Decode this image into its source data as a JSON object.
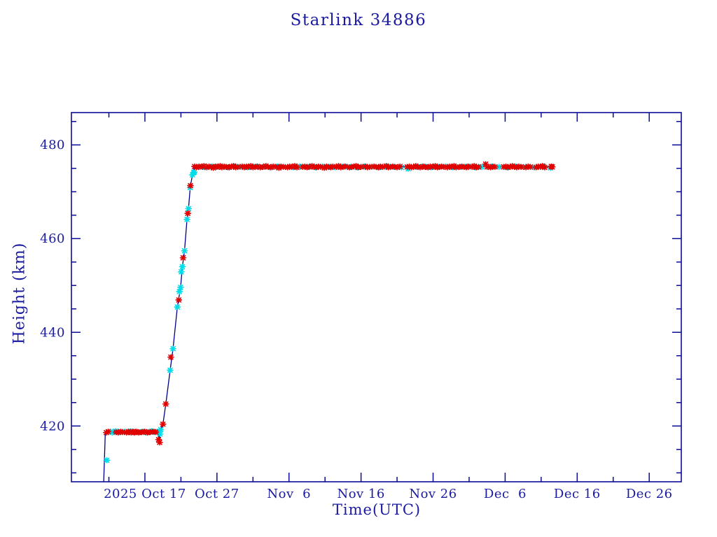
{
  "chart_data": {
    "type": "line",
    "title": "Starlink 34886",
    "xlabel": "Time(UTC)",
    "ylabel": "Height (km)",
    "x_axis_epoch_label": "days relative to 2025 Oct 17",
    "xlim": [
      -10.2,
      74.45
    ],
    "ylim": [
      408.1,
      486.9
    ],
    "grid": false,
    "frame": "closed box, ticks inward on all four sides",
    "legend": "none",
    "x_ticks_major": [
      {
        "day": 0,
        "label": "2025 Oct 17"
      },
      {
        "day": 10,
        "label": "Oct 27"
      },
      {
        "day": 20,
        "label": "Nov  6"
      },
      {
        "day": 30,
        "label": "Nov 16"
      },
      {
        "day": 40,
        "label": "Nov 26"
      },
      {
        "day": 50,
        "label": "Dec  6"
      },
      {
        "day": 60,
        "label": "Dec 16"
      },
      {
        "day": 70,
        "label": "Dec 26"
      }
    ],
    "x_ticks_minor_days": [
      -5,
      5,
      15,
      25,
      35,
      45,
      55,
      65
    ],
    "y_ticks_major": [
      {
        "km": 420,
        "label": "420"
      },
      {
        "km": 440,
        "label": "440"
      },
      {
        "km": 460,
        "label": "460"
      },
      {
        "km": 480,
        "label": "480"
      }
    ],
    "y_ticks_minor_km": [
      410,
      415,
      425,
      430,
      435,
      445,
      450,
      455,
      465,
      470,
      475,
      485
    ],
    "colors": {
      "text": "#1a1aa0",
      "frame": "#0c0c96",
      "line": "#00008b",
      "red_marker": "#e00000",
      "cyan_marker": "#00dde8"
    },
    "series": [
      {
        "name": "orbit-height-track",
        "type": "line",
        "points": [
          [
            -5.72,
            408.1
          ],
          [
            -5.6,
            413.5
          ],
          [
            -5.5,
            418.7
          ],
          [
            1.8,
            418.7
          ],
          [
            1.9,
            417.2
          ],
          [
            1.95,
            418.6
          ],
          [
            2.05,
            416.5
          ],
          [
            2.15,
            418.8
          ],
          [
            2.3,
            419.6
          ],
          [
            2.5,
            420.4
          ],
          [
            2.9,
            424.7
          ],
          [
            3.5,
            431.9
          ],
          [
            3.9,
            436.5
          ],
          [
            4.5,
            445.4
          ],
          [
            4.95,
            449.6
          ],
          [
            5.2,
            454.0
          ],
          [
            5.5,
            457.4
          ],
          [
            5.85,
            464.1
          ],
          [
            6.05,
            466.4
          ],
          [
            6.3,
            471.1
          ],
          [
            6.6,
            473.6
          ],
          [
            6.8,
            474.9
          ],
          [
            6.9,
            475.4
          ],
          [
            15.0,
            475.35
          ],
          [
            25.0,
            475.3
          ],
          [
            35.0,
            475.4
          ],
          [
            45.0,
            475.3
          ],
          [
            56.6,
            475.35
          ]
        ]
      },
      {
        "name": "red-observations",
        "type": "scatter",
        "marker": "asterisk",
        "points": [
          [
            -5.35,
            418.6
          ],
          [
            -5.1,
            418.8
          ],
          [
            -4.0,
            418.7
          ],
          [
            -3.7,
            418.6
          ],
          [
            -3.35,
            418.8
          ],
          [
            -3.1,
            418.7
          ],
          [
            -2.55,
            418.6
          ],
          [
            -2.3,
            418.8
          ],
          [
            -2.1,
            418.7
          ],
          [
            -1.9,
            418.6
          ],
          [
            -1.7,
            418.8
          ],
          [
            -1.55,
            418.7
          ],
          [
            -1.4,
            418.6
          ],
          [
            -1.25,
            418.8
          ],
          [
            -1.05,
            418.7
          ],
          [
            -0.85,
            418.6
          ],
          [
            -0.45,
            418.7
          ],
          [
            -0.05,
            418.8
          ],
          [
            0.35,
            418.6
          ],
          [
            0.75,
            418.7
          ],
          [
            1.05,
            418.8
          ],
          [
            1.5,
            418.7
          ],
          [
            1.9,
            417.1
          ],
          [
            2.05,
            416.5
          ],
          [
            2.5,
            420.4
          ],
          [
            2.9,
            424.7
          ],
          [
            3.6,
            434.7
          ],
          [
            4.7,
            446.9
          ],
          [
            5.3,
            455.9
          ],
          [
            5.95,
            465.4
          ],
          [
            6.32,
            471.3
          ],
          [
            6.9,
            475.4
          ],
          [
            7.15,
            475.2
          ],
          [
            7.5,
            475.4
          ],
          [
            8.0,
            475.3
          ],
          [
            8.2,
            475.5
          ],
          [
            8.6,
            475.2
          ],
          [
            8.9,
            475.4
          ],
          [
            9.2,
            475.3
          ],
          [
            9.5,
            475.1
          ],
          [
            9.8,
            475.4
          ],
          [
            10.0,
            475.3
          ],
          [
            10.45,
            475.5
          ],
          [
            10.7,
            475.2
          ],
          [
            11.0,
            475.4
          ],
          [
            11.3,
            475.3
          ],
          [
            11.7,
            475.2
          ],
          [
            12.0,
            475.4
          ],
          [
            12.3,
            475.5
          ],
          [
            12.6,
            475.2
          ],
          [
            12.9,
            475.3
          ],
          [
            13.5,
            475.4
          ],
          [
            13.8,
            475.2
          ],
          [
            14.1,
            475.4
          ],
          [
            14.4,
            475.3
          ],
          [
            14.7,
            475.5
          ],
          [
            15.0,
            475.2
          ],
          [
            15.3,
            475.3
          ],
          [
            15.6,
            475.4
          ],
          [
            16.0,
            475.2
          ],
          [
            16.4,
            475.3
          ],
          [
            16.8,
            475.5
          ],
          [
            17.1,
            475.3
          ],
          [
            17.4,
            475.2
          ],
          [
            17.8,
            475.4
          ],
          [
            18.3,
            475.3
          ],
          [
            18.6,
            475.1
          ],
          [
            18.9,
            475.4
          ],
          [
            19.2,
            475.3
          ],
          [
            19.8,
            475.2
          ],
          [
            20.1,
            475.4
          ],
          [
            20.4,
            475.3
          ],
          [
            20.8,
            475.5
          ],
          [
            21.1,
            475.2
          ],
          [
            21.9,
            475.3
          ],
          [
            22.2,
            475.4
          ],
          [
            22.5,
            475.2
          ],
          [
            22.8,
            475.3
          ],
          [
            23.2,
            475.5
          ],
          [
            23.5,
            475.3
          ],
          [
            23.8,
            475.2
          ],
          [
            24.1,
            475.4
          ],
          [
            24.4,
            475.3
          ],
          [
            24.9,
            475.1
          ],
          [
            25.2,
            475.4
          ],
          [
            25.5,
            475.3
          ],
          [
            25.8,
            475.2
          ],
          [
            26.1,
            475.4
          ],
          [
            26.6,
            475.3
          ],
          [
            26.9,
            475.5
          ],
          [
            27.2,
            475.2
          ],
          [
            27.5,
            475.3
          ],
          [
            27.8,
            475.4
          ],
          [
            28.4,
            475.2
          ],
          [
            28.7,
            475.3
          ],
          [
            29.0,
            475.4
          ],
          [
            29.3,
            475.5
          ],
          [
            29.6,
            475.2
          ],
          [
            30.0,
            475.3
          ],
          [
            30.6,
            475.4
          ],
          [
            30.9,
            475.2
          ],
          [
            31.2,
            475.3
          ],
          [
            31.8,
            475.4
          ],
          [
            32.1,
            475.3
          ],
          [
            32.4,
            475.2
          ],
          [
            32.7,
            475.4
          ],
          [
            33.0,
            475.3
          ],
          [
            33.5,
            475.5
          ],
          [
            33.8,
            475.2
          ],
          [
            34.1,
            475.3
          ],
          [
            34.4,
            475.4
          ],
          [
            34.7,
            475.3
          ],
          [
            35.0,
            475.2
          ],
          [
            35.4,
            475.4
          ],
          [
            36.4,
            475.3
          ],
          [
            36.7,
            475.4
          ],
          [
            37.0,
            475.2
          ],
          [
            37.3,
            475.3
          ],
          [
            37.6,
            475.5
          ],
          [
            37.9,
            475.3
          ],
          [
            38.2,
            475.2
          ],
          [
            38.6,
            475.4
          ],
          [
            38.9,
            475.3
          ],
          [
            39.3,
            475.2
          ],
          [
            39.6,
            475.4
          ],
          [
            39.9,
            475.3
          ],
          [
            40.3,
            475.5
          ],
          [
            40.6,
            475.2
          ],
          [
            40.9,
            475.3
          ],
          [
            41.2,
            475.4
          ],
          [
            41.5,
            475.3
          ],
          [
            42.0,
            475.2
          ],
          [
            42.3,
            475.4
          ],
          [
            42.6,
            475.3
          ],
          [
            42.9,
            475.5
          ],
          [
            43.2,
            475.2
          ],
          [
            43.7,
            475.3
          ],
          [
            44.0,
            475.4
          ],
          [
            44.3,
            475.3
          ],
          [
            44.6,
            475.2
          ],
          [
            44.9,
            475.4
          ],
          [
            45.4,
            475.3
          ],
          [
            45.7,
            475.5
          ],
          [
            46.0,
            475.2
          ],
          [
            46.3,
            475.3
          ],
          [
            47.3,
            475.9
          ],
          [
            47.5,
            475.3
          ],
          [
            48.0,
            475.2
          ],
          [
            48.3,
            475.4
          ],
          [
            48.6,
            475.3
          ],
          [
            49.8,
            475.3
          ],
          [
            50.1,
            475.4
          ],
          [
            50.4,
            475.2
          ],
          [
            50.7,
            475.3
          ],
          [
            51.0,
            475.5
          ],
          [
            51.3,
            475.3
          ],
          [
            51.6,
            475.2
          ],
          [
            51.9,
            475.4
          ],
          [
            52.2,
            475.3
          ],
          [
            52.9,
            475.2
          ],
          [
            53.2,
            475.4
          ],
          [
            53.5,
            475.3
          ],
          [
            54.3,
            475.2
          ],
          [
            54.6,
            475.4
          ],
          [
            54.9,
            475.3
          ],
          [
            55.2,
            475.5
          ],
          [
            55.5,
            475.2
          ],
          [
            56.4,
            475.4
          ],
          [
            56.55,
            475.3
          ]
        ]
      },
      {
        "name": "cyan-observations",
        "type": "scatter",
        "marker": "asterisk",
        "points": [
          [
            -5.28,
            412.7
          ],
          [
            -4.8,
            418.8
          ],
          [
            -4.55,
            418.6
          ],
          [
            -4.3,
            418.7
          ],
          [
            -4.05,
            418.9
          ],
          [
            -3.5,
            418.7
          ],
          [
            -2.8,
            418.8
          ],
          [
            -1.95,
            418.9
          ],
          [
            -0.65,
            418.7
          ],
          [
            -0.25,
            418.8
          ],
          [
            0.15,
            418.6
          ],
          [
            0.55,
            418.7
          ],
          [
            0.95,
            418.9
          ],
          [
            1.3,
            418.7
          ],
          [
            1.7,
            418.8
          ],
          [
            2.1,
            418.3
          ],
          [
            2.2,
            419.2
          ],
          [
            3.5,
            431.9
          ],
          [
            3.9,
            436.5
          ],
          [
            4.5,
            445.4
          ],
          [
            4.8,
            448.7
          ],
          [
            4.95,
            449.6
          ],
          [
            5.05,
            452.9
          ],
          [
            5.2,
            454.0
          ],
          [
            5.5,
            457.4
          ],
          [
            5.85,
            464.1
          ],
          [
            6.05,
            466.4
          ],
          [
            6.28,
            470.9
          ],
          [
            6.6,
            473.6
          ],
          [
            6.85,
            474.2
          ],
          [
            6.77,
            474.1
          ],
          [
            7.6,
            475.3
          ],
          [
            8.35,
            475.2
          ],
          [
            9.35,
            475.4
          ],
          [
            10.25,
            475.3
          ],
          [
            11.5,
            475.2
          ],
          [
            12.45,
            475.4
          ],
          [
            13.25,
            475.3
          ],
          [
            14.25,
            475.2
          ],
          [
            15.45,
            475.4
          ],
          [
            16.6,
            475.3
          ],
          [
            17.6,
            475.2
          ],
          [
            18.45,
            475.4
          ],
          [
            19.5,
            475.3
          ],
          [
            20.6,
            475.2
          ],
          [
            21.5,
            475.4
          ],
          [
            22.65,
            475.3
          ],
          [
            23.65,
            475.2
          ],
          [
            24.65,
            475.4
          ],
          [
            25.65,
            475.3
          ],
          [
            26.4,
            475.2
          ],
          [
            27.65,
            475.4
          ],
          [
            28.55,
            475.3
          ],
          [
            29.45,
            475.2
          ],
          [
            30.45,
            475.4
          ],
          [
            31.5,
            475.3
          ],
          [
            32.55,
            475.2
          ],
          [
            33.65,
            475.4
          ],
          [
            34.55,
            475.3
          ],
          [
            35.6,
            475.2
          ],
          [
            36.55,
            474.9
          ],
          [
            37.75,
            475.3
          ],
          [
            38.75,
            475.4
          ],
          [
            39.75,
            475.2
          ],
          [
            40.75,
            475.3
          ],
          [
            41.75,
            475.4
          ],
          [
            42.75,
            475.2
          ],
          [
            43.85,
            475.3
          ],
          [
            44.75,
            475.4
          ],
          [
            45.85,
            475.2
          ],
          [
            46.75,
            475.3
          ],
          [
            48.15,
            475.4
          ],
          [
            49.15,
            475.3
          ],
          [
            50.25,
            475.2
          ],
          [
            51.45,
            475.4
          ],
          [
            52.55,
            475.3
          ],
          [
            54.05,
            475.2
          ],
          [
            55.35,
            475.4
          ],
          [
            56.3,
            475.1
          ]
        ]
      }
    ]
  }
}
